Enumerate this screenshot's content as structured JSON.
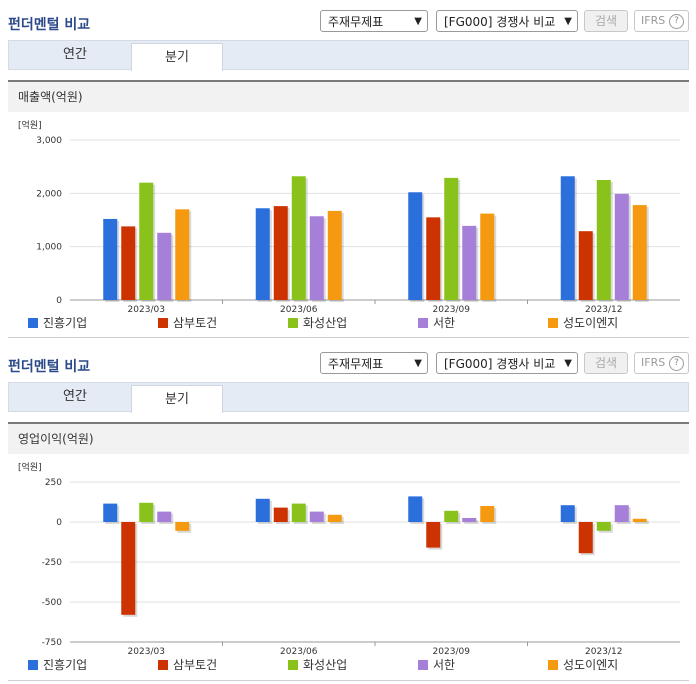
{
  "sections": [
    {
      "title": "펀더멘털 비교",
      "select1": "주재무제표",
      "select2": "[FG000] 경쟁사 비교",
      "search_label": "검색",
      "ifrs_label": "IFRS",
      "tabs": [
        "연간",
        "분기"
      ],
      "active_tab": 1,
      "panel_title": "매출액(억원)"
    },
    {
      "title": "펀더멘털 비교",
      "select1": "주재무제표",
      "select2": "[FG000] 경쟁사 비교",
      "search_label": "검색",
      "ifrs_label": "IFRS",
      "tabs": [
        "연간",
        "분기"
      ],
      "active_tab": 1,
      "panel_title": "영업이익(억원)"
    }
  ],
  "colors": {
    "진흥기업": "#2a6fdb",
    "삼부토건": "#cc3300",
    "화성산업": "#88c21a",
    "서한": "#a57fd8",
    "성도이엔지": "#f59a10"
  },
  "chart_data": [
    {
      "type": "bar",
      "unit_label": "[억원]",
      "categories": [
        "2023/03",
        "2023/06",
        "2023/09",
        "2023/12"
      ],
      "ylim": [
        0,
        3000
      ],
      "yticks": [
        0,
        1000,
        2000,
        3000
      ],
      "ytick_labels": [
        "0",
        "1,000",
        "2,000",
        "3,000"
      ],
      "grid": true,
      "legend": "bottom",
      "series": [
        {
          "name": "진흥기업",
          "values": [
            1520,
            1720,
            2020,
            2320
          ]
        },
        {
          "name": "삼부토건",
          "values": [
            1380,
            1760,
            1550,
            1290
          ]
        },
        {
          "name": "화성산업",
          "values": [
            2200,
            2320,
            2290,
            2250
          ]
        },
        {
          "name": "서한",
          "values": [
            1260,
            1570,
            1390,
            1990
          ]
        },
        {
          "name": "성도이엔지",
          "values": [
            1700,
            1670,
            1620,
            1780
          ]
        }
      ]
    },
    {
      "type": "bar",
      "unit_label": "[억원]",
      "categories": [
        "2023/03",
        "2023/06",
        "2023/09",
        "2023/12"
      ],
      "ylim": [
        -750,
        250
      ],
      "yticks": [
        -750,
        -500,
        -250,
        0,
        250
      ],
      "ytick_labels": [
        "-750",
        "-500",
        "-250",
        "0",
        "250"
      ],
      "grid": true,
      "legend": "bottom",
      "series": [
        {
          "name": "진흥기업",
          "values": [
            115,
            145,
            160,
            105
          ]
        },
        {
          "name": "삼부토건",
          "values": [
            -580,
            90,
            -160,
            -195
          ]
        },
        {
          "name": "화성산업",
          "values": [
            120,
            115,
            70,
            -55
          ]
        },
        {
          "name": "서한",
          "values": [
            65,
            65,
            25,
            105
          ]
        },
        {
          "name": "성도이엔지",
          "values": [
            -55,
            45,
            100,
            20
          ]
        }
      ]
    }
  ]
}
